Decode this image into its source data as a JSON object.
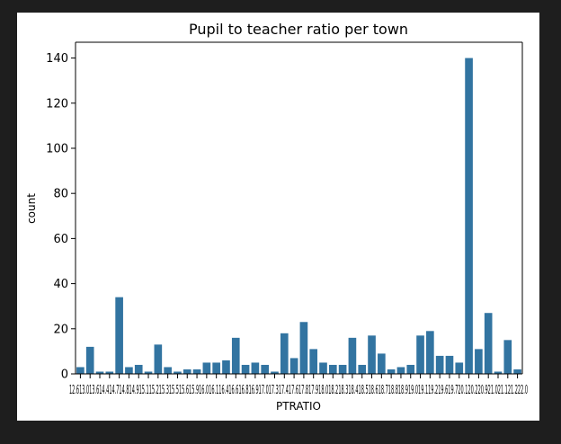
{
  "colors": {
    "window_background": "#1e1e1e",
    "figure_background": "#ffffff",
    "bar": "#3274a1",
    "axis": "#000000"
  },
  "chart_data": {
    "type": "bar",
    "title": "Pupil to teacher ratio per town",
    "xlabel": "PTRATIO",
    "ylabel": "count",
    "ylim": [
      0,
      147
    ],
    "yticks": [
      0,
      20,
      40,
      60,
      80,
      100,
      120,
      140
    ],
    "grid": false,
    "legend": "none",
    "categories": [
      "12.6",
      "13.0",
      "13.6",
      "14.4",
      "14.7",
      "14.8",
      "14.9",
      "15.1",
      "15.2",
      "15.3",
      "15.5",
      "15.6",
      "15.9",
      "16.0",
      "16.1",
      "16.4",
      "16.6",
      "16.8",
      "16.9",
      "17.0",
      "17.3",
      "17.4",
      "17.6",
      "17.8",
      "17.9",
      "18.0",
      "18.2",
      "18.3",
      "18.4",
      "18.5",
      "18.6",
      "18.7",
      "18.8",
      "18.9",
      "19.0",
      "19.1",
      "19.2",
      "19.6",
      "19.7",
      "20.1",
      "20.2",
      "20.9",
      "21.0",
      "21.1",
      "21.2",
      "22.0"
    ],
    "values": [
      3,
      12,
      1,
      1,
      34,
      3,
      4,
      1,
      13,
      3,
      1,
      2,
      2,
      5,
      5,
      6,
      16,
      4,
      5,
      4,
      1,
      18,
      7,
      23,
      11,
      5,
      4,
      4,
      16,
      4,
      17,
      9,
      2,
      3,
      4,
      17,
      19,
      8,
      8,
      5,
      140,
      11,
      27,
      1,
      15,
      2
    ],
    "xtick_text": "12.613.013.614.414.714.814.915.115.215.315.515.615.916.016.116.416.616.816.917.017.317.417.617.817.918.018.218.318.418.518.618.718.818.919.019.119.219.619.720.120.220.921.021.121.222.0"
  }
}
